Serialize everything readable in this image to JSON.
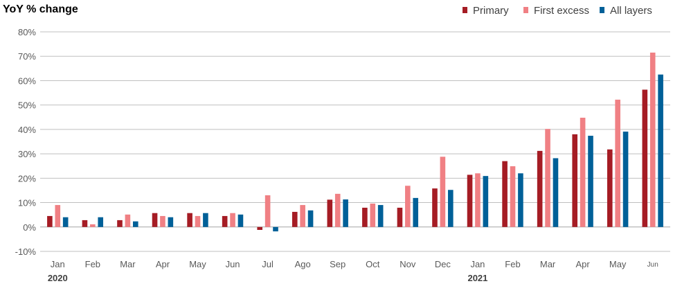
{
  "chart_data": {
    "type": "bar",
    "title": "YoY % change",
    "ylabel": "",
    "xlabel": "",
    "ylim": [
      -10,
      80
    ],
    "yticks": [
      "-10%",
      "0%",
      "10%",
      "20%",
      "30%",
      "40%",
      "50%",
      "60%",
      "70%",
      "80%"
    ],
    "grid": true,
    "legend_position": "top-right",
    "categories": [
      "Jan",
      "Feb",
      "Mar",
      "Apr",
      "May",
      "Jun",
      "Jul",
      "Ago",
      "Sep",
      "Oct",
      "Nov",
      "Dec",
      "Jan",
      "Feb",
      "Mar",
      "Apr",
      "May",
      "Jun"
    ],
    "year_labels": [
      {
        "label": "2020",
        "category_index": 0
      },
      {
        "label": "2021",
        "category_index": 12
      }
    ],
    "series": [
      {
        "name": "Primary",
        "color": "#a51c24",
        "values": [
          4.5,
          2.8,
          2.8,
          5.7,
          5.7,
          4.5,
          -1.2,
          6.2,
          11.2,
          7.9,
          7.9,
          15.8,
          21.4,
          27.0,
          31.2,
          38.0,
          31.8,
          56.3
        ]
      },
      {
        "name": "First excess",
        "color": "#f08084",
        "values": [
          9.0,
          1.1,
          5.1,
          4.5,
          4.5,
          5.7,
          13.0,
          9.0,
          13.6,
          9.6,
          16.9,
          28.8,
          22.0,
          24.9,
          40.2,
          44.8,
          52.2,
          71.5
        ]
      },
      {
        "name": "All layers",
        "color": "#006098",
        "values": [
          4.0,
          4.0,
          2.3,
          4.0,
          5.7,
          5.1,
          -1.8,
          6.8,
          11.3,
          9.0,
          11.9,
          15.2,
          20.9,
          22.0,
          28.2,
          37.4,
          39.1,
          62.5
        ]
      }
    ]
  }
}
